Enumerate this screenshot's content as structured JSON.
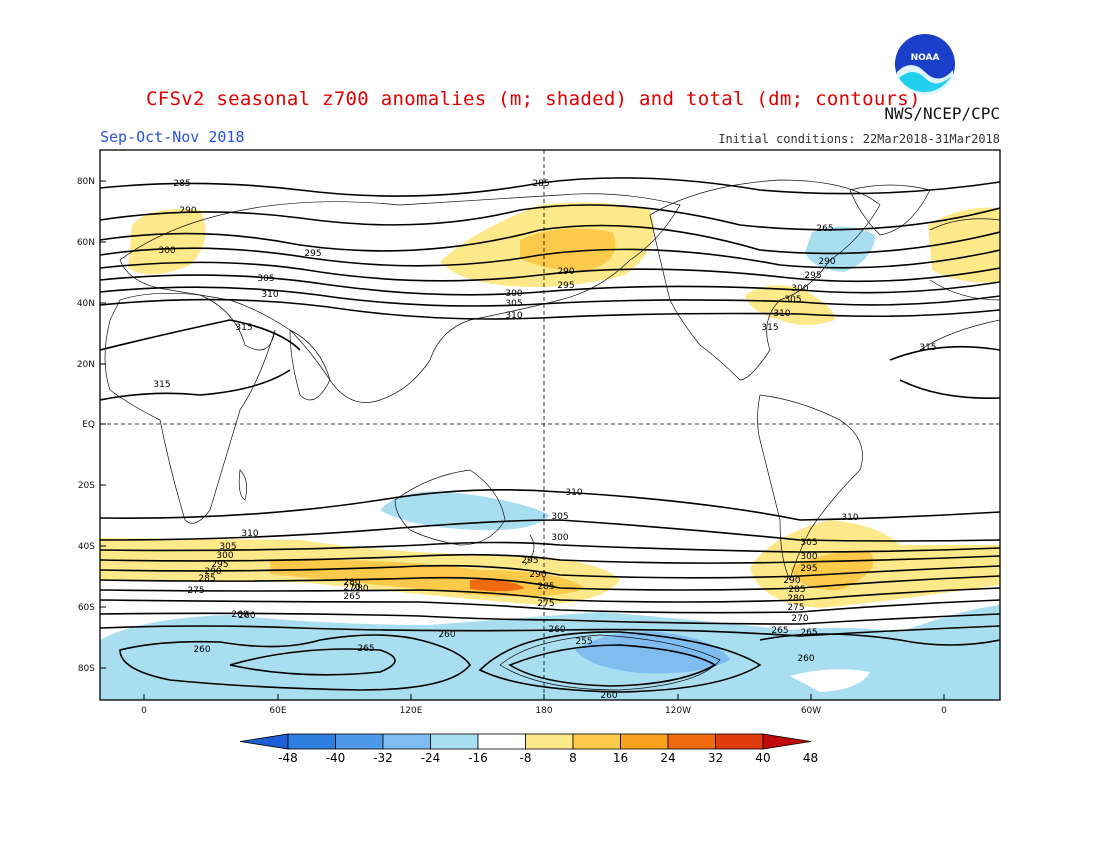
{
  "header": {
    "title": "CFSv2 seasonal z700 anomalies (m; shaded) and total (dm; contours)",
    "season": "Sep-Oct-Nov 2018",
    "initial_conditions": "Initial conditions: 22Mar2018-31Mar2018",
    "agency": "NWS/NCEP/CPC",
    "logo_text": "NOAA"
  },
  "map": {
    "lat_labels": [
      "80N",
      "60N",
      "40N",
      "20N",
      "EQ",
      "20S",
      "40S",
      "60S",
      "80S"
    ],
    "lon_labels": [
      "0",
      "60E",
      "120E",
      "180",
      "120W",
      "60W",
      "0"
    ],
    "contour_labels": [
      "285",
      "285",
      "290",
      "295",
      "300",
      "305",
      "310",
      "315",
      "315",
      "315",
      "290",
      "295",
      "300",
      "305",
      "310",
      "265",
      "290",
      "295",
      "300",
      "305",
      "310",
      "315",
      "310",
      "310",
      "305",
      "300",
      "295",
      "290",
      "285",
      "280",
      "275",
      "270",
      "265",
      "260",
      "305",
      "300",
      "295",
      "290",
      "285",
      "275",
      "265",
      "260",
      "255",
      "260",
      "260",
      "265",
      "260",
      "260",
      "310",
      "305",
      "300",
      "295",
      "290",
      "285",
      "280",
      "275",
      "270",
      "265",
      "260",
      "280"
    ]
  },
  "colorbar": {
    "labels": [
      "-48",
      "-40",
      "-32",
      "-24",
      "-16",
      "-8",
      "8",
      "16",
      "24",
      "32",
      "40",
      "48"
    ],
    "colors": [
      "#1f5fd8",
      "#2f7fe0",
      "#4f9ae8",
      "#7fbdf0",
      "#a8def0",
      "#ffffff",
      "#fde88a",
      "#fcc94a",
      "#f9a21e",
      "#f06b10",
      "#e03c0c",
      "#c00c0c"
    ]
  }
}
